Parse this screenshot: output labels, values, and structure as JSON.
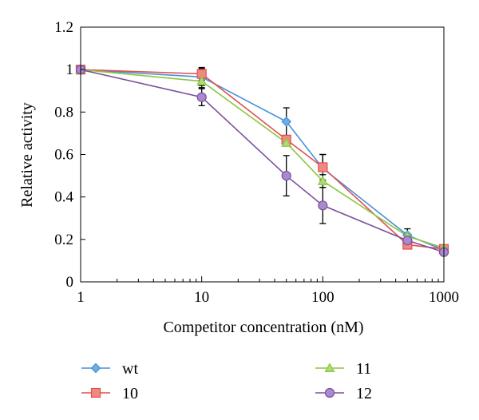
{
  "chart_data": {
    "type": "line",
    "xlabel": "Competitor concentration (nM)",
    "ylabel": "Relative activity",
    "x_scale": "log",
    "xlim": [
      1,
      1000
    ],
    "ylim": [
      0,
      1.2
    ],
    "x_ticks": [
      1,
      10,
      100,
      1000
    ],
    "x_tick_labels": [
      "1",
      "10",
      "100",
      "1000"
    ],
    "y_ticks": [
      0,
      0.2,
      0.4,
      0.6,
      0.8,
      1,
      1.2
    ],
    "y_tick_labels": [
      "0",
      "0.2",
      "0.4",
      "0.6",
      "0.8",
      "1",
      "1.2"
    ],
    "grid": false,
    "legend_position": "bottom",
    "x": [
      1,
      10,
      50,
      100,
      500,
      1000
    ],
    "series": [
      {
        "name": "wt",
        "marker": "diamond",
        "color": "#4a90d9",
        "fill": "#6aaee6",
        "values": [
          1.0,
          0.965,
          0.755,
          0.535,
          0.22,
          0.15
        ],
        "errors": [
          0,
          0.04,
          0.065,
          0.065,
          0.03,
          0.015
        ]
      },
      {
        "name": "10",
        "marker": "square",
        "color": "#e05050",
        "fill": "#f08a80",
        "values": [
          1.0,
          0.98,
          0.67,
          0.54,
          0.175,
          0.155
        ],
        "errors": [
          0,
          0.03,
          0.0,
          0.06,
          0.0,
          0.0
        ]
      },
      {
        "name": "11",
        "marker": "triangle",
        "color": "#8cc63f",
        "fill": "#b0d97a",
        "values": [
          1.0,
          0.945,
          0.655,
          0.475,
          0.215,
          0.16
        ],
        "errors": [
          0,
          0.03,
          0.0,
          0.03,
          0.0,
          0.0
        ]
      },
      {
        "name": "12",
        "marker": "circle",
        "color": "#7b4f9e",
        "fill": "#a98acc",
        "values": [
          1.0,
          0.87,
          0.5,
          0.36,
          0.195,
          0.14
        ],
        "errors": [
          0,
          0.04,
          0.095,
          0.085,
          0.02,
          0.0
        ]
      }
    ]
  }
}
